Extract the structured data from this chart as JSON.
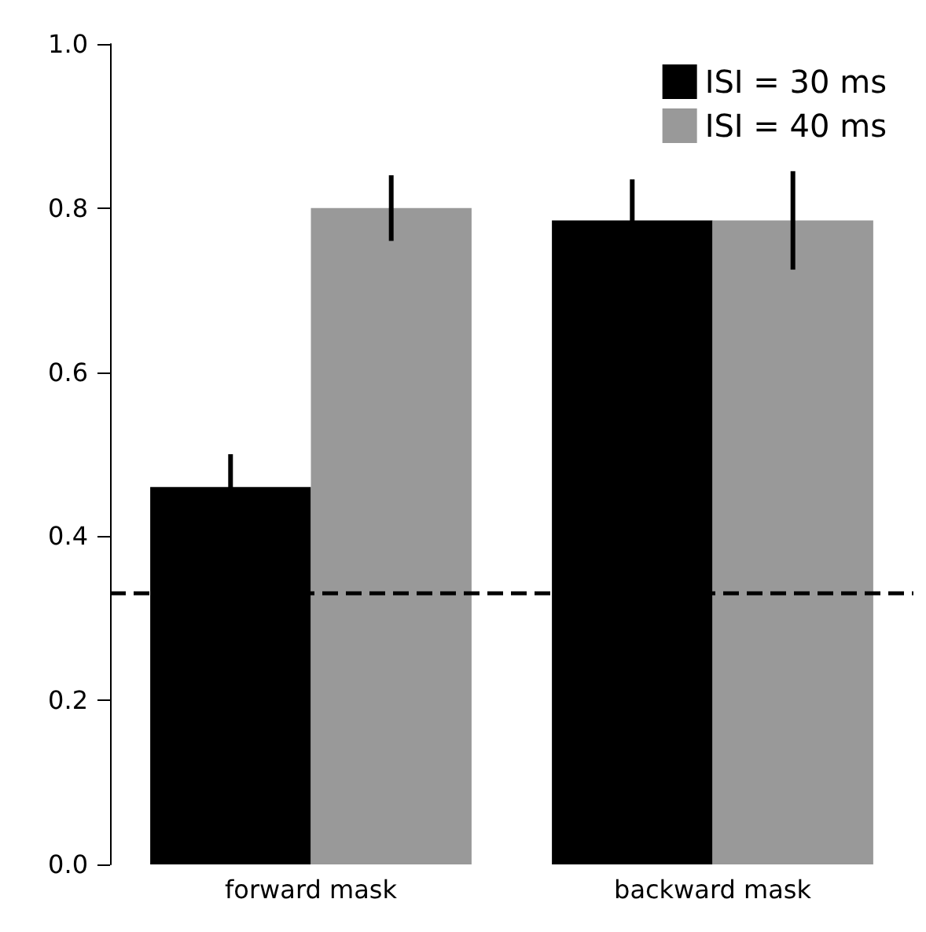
{
  "chart_data": {
    "type": "bar",
    "categories": [
      "forward mask",
      "backward mask"
    ],
    "series": [
      {
        "name": "ISI = 30 ms",
        "color": "#000000",
        "values": [
          0.46,
          0.785
        ],
        "errors": [
          0.04,
          0.05
        ]
      },
      {
        "name": "ISI = 40 ms",
        "color": "#999999",
        "values": [
          0.8,
          0.785
        ],
        "errors": [
          0.04,
          0.06
        ]
      }
    ],
    "ylim": [
      0,
      1
    ],
    "yticks": [
      {
        "value": 0,
        "label": "0.0"
      },
      {
        "value": 0.2,
        "label": "0.2"
      },
      {
        "value": 0.4,
        "label": "0.4"
      },
      {
        "value": 0.6,
        "label": "0.6"
      },
      {
        "value": 0.8,
        "label": "0.8"
      },
      {
        "value": 1,
        "label": "1.0"
      }
    ],
    "ref_lines": [
      {
        "axis": "y",
        "value": 0.33,
        "color": "#000000",
        "line_style": "dashed"
      }
    ],
    "grid": false,
    "legend": "top right"
  }
}
